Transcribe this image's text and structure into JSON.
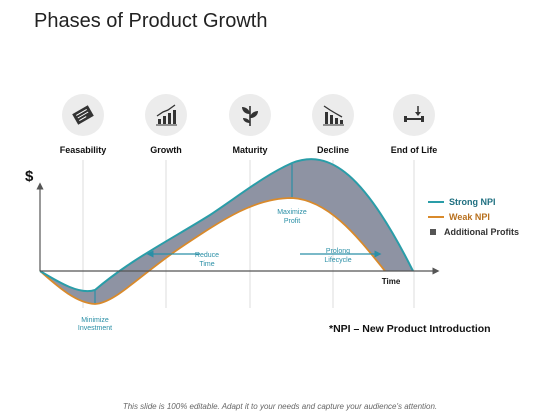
{
  "title": "Phases of Product Growth",
  "phases": [
    {
      "label": "Feasability",
      "icon": "certificate-icon"
    },
    {
      "label": "Growth",
      "icon": "growth-bar-chart-icon"
    },
    {
      "label": "Maturity",
      "icon": "plant-icon"
    },
    {
      "label": "Decline",
      "icon": "decline-chart-icon"
    },
    {
      "label": "End of Life",
      "icon": "end-of-life-icon"
    }
  ],
  "y_axis_symbol": "$",
  "legend": [
    {
      "label": "Strong NPI",
      "kind": "line",
      "color": "#2a9da8"
    },
    {
      "label": "Weak NPI",
      "kind": "line",
      "color": "#d98a2b"
    },
    {
      "label": "Additional Profits",
      "kind": "square",
      "color": "#555555"
    }
  ],
  "note": "*NPI – New Product Introduction",
  "footer": "This slide is 100% editable. Adapt it to your needs and capture your audience's attention.",
  "chart_data": {
    "type": "area",
    "xlabel": "Time",
    "ylabel": "$",
    "categories": [
      "Feasability",
      "Growth",
      "Maturity",
      "Decline",
      "End of Life"
    ],
    "series": [
      {
        "name": "Strong NPI",
        "color": "#2a9da8"
      },
      {
        "name": "Weak NPI",
        "color": "#d98a2b"
      }
    ],
    "fill_color": "#8e93a3",
    "annotations": [
      "Minimize Investment",
      "Reduce Time",
      "Maximize Profit",
      "Prolong Lifecycle"
    ]
  }
}
